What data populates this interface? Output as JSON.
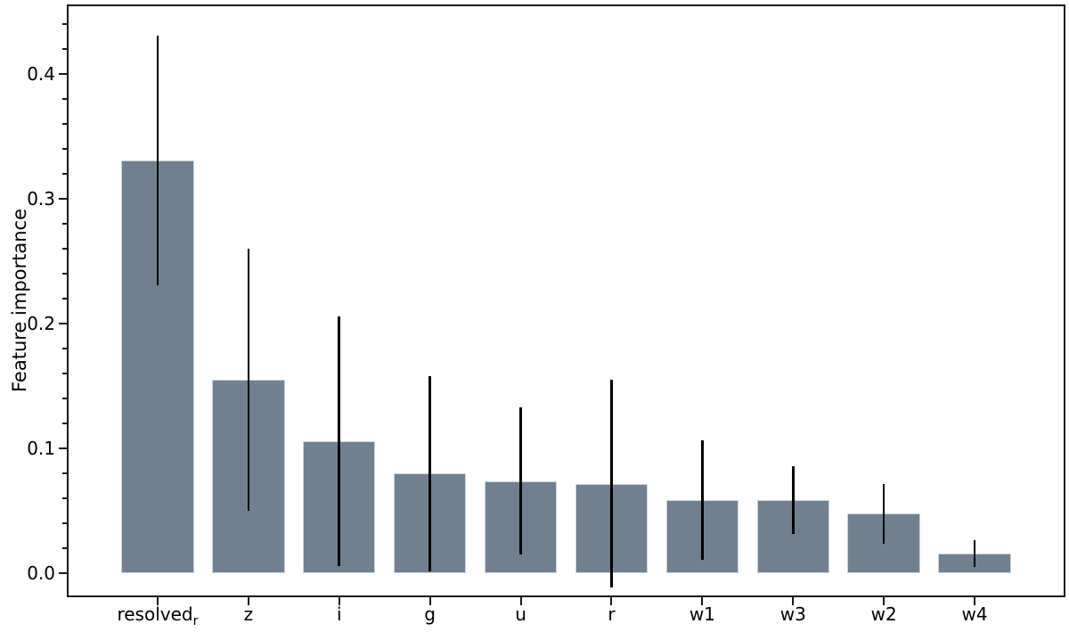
{
  "chart_data": {
    "type": "bar",
    "title": "",
    "xlabel": "",
    "ylabel": "Feature importance",
    "categories": [
      "resolved_r",
      "z",
      "i",
      "g",
      "u",
      "r",
      "w1",
      "w3",
      "w2",
      "w4"
    ],
    "values": [
      0.331,
      0.155,
      0.106,
      0.08,
      0.074,
      0.072,
      0.059,
      0.059,
      0.048,
      0.016
    ],
    "errors": [
      0.1,
      0.105,
      0.1,
      0.078,
      0.059,
      0.083,
      0.048,
      0.027,
      0.024,
      0.011
    ],
    "ytick_values": [
      0.0,
      0.1,
      0.2,
      0.3,
      0.4
    ],
    "ytick_labels": [
      "0.0",
      "0.1",
      "0.2",
      "0.3",
      "0.4"
    ],
    "minor_tick_step": 0.02,
    "ylim": [
      -0.019,
      0.456
    ],
    "grid": false,
    "legend": null,
    "bar_color": "#708090",
    "bar_edge_color": "#ccd3da",
    "errorbar_color": "#000000",
    "axis_color": "#1a1a1a"
  }
}
